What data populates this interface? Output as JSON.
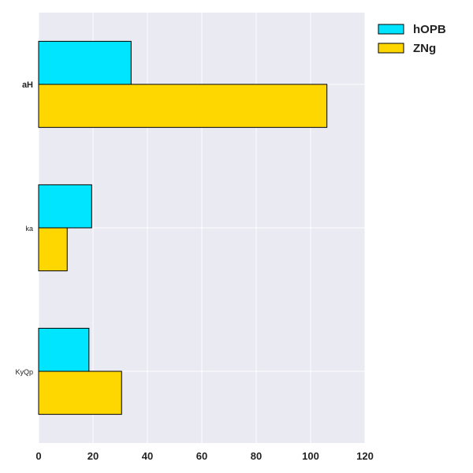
{
  "chart_data": {
    "type": "bar",
    "orientation": "horizontal",
    "categories": [
      "aH",
      "ka",
      "KyQp"
    ],
    "series": [
      {
        "name": "hOPB",
        "values": [
          34,
          19.5,
          18.5
        ],
        "color": "#00e5ff"
      },
      {
        "name": "ZNg",
        "values": [
          106,
          10.5,
          30.5
        ],
        "color": "#ffd700"
      }
    ],
    "x_ticks": [
      "0",
      "20",
      "40",
      "60",
      "80",
      "100",
      "120"
    ],
    "xlim": [
      0,
      120
    ],
    "grid": true,
    "legend_position": "top-right",
    "background": "#eaeaf2"
  }
}
